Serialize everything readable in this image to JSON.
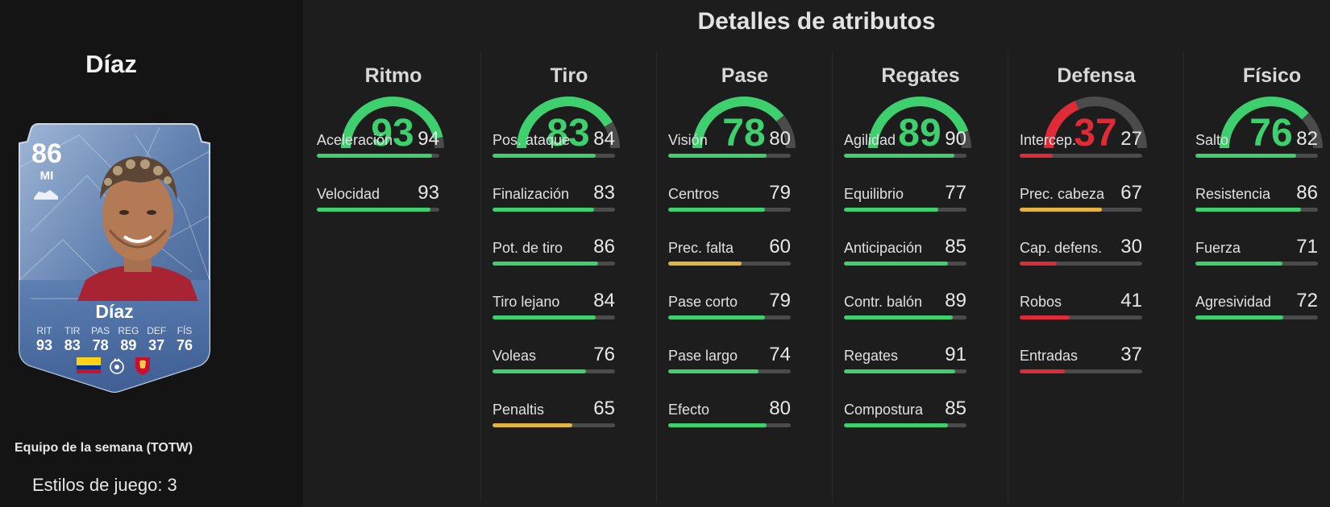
{
  "colors": {
    "high": "#3ecf6e",
    "mid": "#e2b53f",
    "low": "#de2b37",
    "track": "#4b4b4b"
  },
  "player": {
    "name": "Díaz",
    "card": {
      "rating": "86",
      "position": "MI",
      "name": "Díaz",
      "stats": [
        {
          "label": "RIT",
          "value": "93"
        },
        {
          "label": "TIR",
          "value": "83"
        },
        {
          "label": "PAS",
          "value": "78"
        },
        {
          "label": "REG",
          "value": "89"
        },
        {
          "label": "DEF",
          "value": "37"
        },
        {
          "label": "FÍS",
          "value": "76"
        }
      ],
      "badges": [
        "colombia-flag-icon",
        "premier-league-icon",
        "liverpool-crest-icon"
      ]
    },
    "card_type": "Equipo de la semana (TOTW)",
    "playstyles": "Estilos de juego: 3"
  },
  "main": {
    "title": "Detalles de atributos",
    "columns": [
      {
        "title": "Ritmo",
        "value": 93,
        "tier": "high",
        "attrs": [
          {
            "label": "Aceleración",
            "value": 94,
            "tier": "high"
          },
          {
            "label": "Velocidad",
            "value": 93,
            "tier": "high"
          }
        ]
      },
      {
        "title": "Tiro",
        "value": 83,
        "tier": "high",
        "attrs": [
          {
            "label": "Pos. ataque",
            "value": 84,
            "tier": "high"
          },
          {
            "label": "Finalización",
            "value": 83,
            "tier": "high"
          },
          {
            "label": "Pot. de tiro",
            "value": 86,
            "tier": "high"
          },
          {
            "label": "Tiro lejano",
            "value": 84,
            "tier": "high"
          },
          {
            "label": "Voleas",
            "value": 76,
            "tier": "high"
          },
          {
            "label": "Penaltis",
            "value": 65,
            "tier": "mid"
          }
        ]
      },
      {
        "title": "Pase",
        "value": 78,
        "tier": "high",
        "attrs": [
          {
            "label": "Visión",
            "value": 80,
            "tier": "high"
          },
          {
            "label": "Centros",
            "value": 79,
            "tier": "high"
          },
          {
            "label": "Prec. falta",
            "value": 60,
            "tier": "mid"
          },
          {
            "label": "Pase corto",
            "value": 79,
            "tier": "high"
          },
          {
            "label": "Pase largo",
            "value": 74,
            "tier": "high"
          },
          {
            "label": "Efecto",
            "value": 80,
            "tier": "high"
          }
        ]
      },
      {
        "title": "Regates",
        "value": 89,
        "tier": "high",
        "attrs": [
          {
            "label": "Agilidad",
            "value": 90,
            "tier": "high"
          },
          {
            "label": "Equilibrio",
            "value": 77,
            "tier": "high"
          },
          {
            "label": "Anticipación",
            "value": 85,
            "tier": "high"
          },
          {
            "label": "Contr. balón",
            "value": 89,
            "tier": "high"
          },
          {
            "label": "Regates",
            "value": 91,
            "tier": "high"
          },
          {
            "label": "Compostura",
            "value": 85,
            "tier": "high"
          }
        ]
      },
      {
        "title": "Defensa",
        "value": 37,
        "tier": "low",
        "attrs": [
          {
            "label": "Intercep.",
            "value": 27,
            "tier": "low"
          },
          {
            "label": "Prec. cabeza",
            "value": 67,
            "tier": "mid"
          },
          {
            "label": "Cap. defens.",
            "value": 30,
            "tier": "low"
          },
          {
            "label": "Robos",
            "value": 41,
            "tier": "low"
          },
          {
            "label": "Entradas",
            "value": 37,
            "tier": "low"
          }
        ]
      },
      {
        "title": "Físico",
        "value": 76,
        "tier": "high",
        "attrs": [
          {
            "label": "Salto",
            "value": 82,
            "tier": "high"
          },
          {
            "label": "Resistencia",
            "value": 86,
            "tier": "high"
          },
          {
            "label": "Fuerza",
            "value": 71,
            "tier": "high"
          },
          {
            "label": "Agresividad",
            "value": 72,
            "tier": "high"
          }
        ]
      }
    ]
  }
}
